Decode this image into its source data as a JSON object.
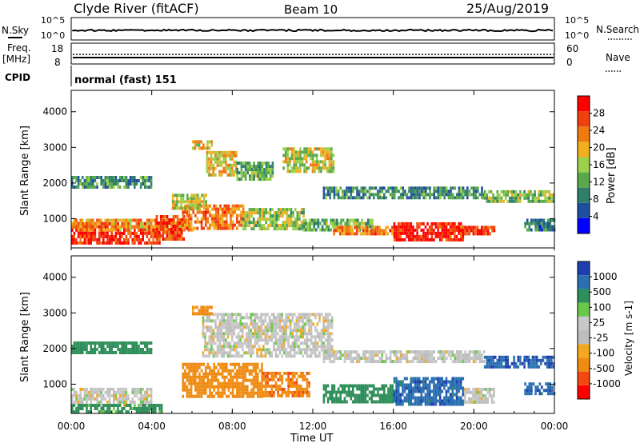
{
  "header": {
    "title": "Clyde River (fitACF)",
    "beam": "Beam 10",
    "date": "25/Aug/2019"
  },
  "top_panels": {
    "nsky_label": "N.Sky",
    "nsearch_label": "N.Search",
    "noise_ticks": [
      "10^5",
      "10^0"
    ],
    "freq_label_1": "Freq.",
    "freq_label_2": "[MHz]",
    "freq_ticks": [
      "18",
      "8"
    ],
    "nave_label": "Nave",
    "nave_ticks": [
      "60",
      "0"
    ],
    "cpid_label": "CPID",
    "cpid_value": "normal (fast) 151"
  },
  "colors": {
    "power_scale": [
      "#0000ff",
      "#1e4fa0",
      "#2f7f6a",
      "#5aa84a",
      "#9bd04a",
      "#f0b020",
      "#f07a10",
      "#f04010",
      "#ff0000"
    ],
    "velocity_scale": [
      "#ff0000",
      "#f04a10",
      "#f08a10",
      "#f4a820",
      "#bdbdbd",
      "#c8c8c8",
      "#6cc84a",
      "#2f8f5a",
      "#2a6fb0",
      "#1f3fb0"
    ]
  },
  "chart_data": [
    {
      "type": "heatmap",
      "panel": "power",
      "xlabel": "",
      "ylabel": "Slant Range [km]",
      "xlim": [
        "00:00",
        "24:00"
      ],
      "ylim": [
        180,
        4600
      ],
      "y_ticks": [
        1000,
        2000,
        3000,
        4000
      ],
      "colorbar": {
        "label": "Power [dB]",
        "ticks": [
          4,
          8,
          12,
          16,
          20,
          24,
          28
        ],
        "range": [
          0,
          30
        ]
      },
      "regions": [
        {
          "t0": 0.0,
          "t1": 4.4,
          "r0": 300,
          "r1": 900,
          "value": 27
        },
        {
          "t0": 0.0,
          "t1": 6.0,
          "r0": 650,
          "r1": 1000,
          "value": 20
        },
        {
          "t0": 4.2,
          "t1": 5.6,
          "r0": 400,
          "r1": 1100,
          "value": 25
        },
        {
          "t0": 5.5,
          "t1": 8.5,
          "r0": 700,
          "r1": 1400,
          "value": 22
        },
        {
          "t0": 8.5,
          "t1": 11.5,
          "r0": 750,
          "r1": 1300,
          "value": 14
        },
        {
          "t0": 11.5,
          "t1": 15.0,
          "r0": 650,
          "r1": 1000,
          "value": 12
        },
        {
          "t0": 13.0,
          "t1": 16.0,
          "r0": 600,
          "r1": 800,
          "value": 22
        },
        {
          "t0": 16.0,
          "t1": 19.5,
          "r0": 450,
          "r1": 900,
          "value": 27
        },
        {
          "t0": 19.0,
          "t1": 21.0,
          "r0": 550,
          "r1": 800,
          "value": 26
        },
        {
          "t0": 0.0,
          "t1": 4.0,
          "r0": 1900,
          "r1": 2200,
          "value": 10
        },
        {
          "t0": 5.0,
          "t1": 6.7,
          "r0": 1300,
          "r1": 1700,
          "value": 16
        },
        {
          "t0": 6.7,
          "t1": 8.2,
          "r0": 2200,
          "r1": 2900,
          "value": 18
        },
        {
          "t0": 8.2,
          "t1": 10.0,
          "r0": 2100,
          "r1": 2600,
          "value": 12
        },
        {
          "t0": 10.5,
          "t1": 13.0,
          "r0": 2300,
          "r1": 3000,
          "value": 16
        },
        {
          "t0": 6.0,
          "t1": 7.0,
          "r0": 3000,
          "r1": 3200,
          "value": 18
        },
        {
          "t0": 12.5,
          "t1": 20.5,
          "r0": 1600,
          "r1": 1900,
          "value": 9
        },
        {
          "t0": 20.5,
          "t1": 24.0,
          "r0": 1500,
          "r1": 1800,
          "value": 13
        },
        {
          "t0": 22.5,
          "t1": 24.0,
          "r0": 700,
          "r1": 1000,
          "value": 8
        }
      ]
    },
    {
      "type": "heatmap",
      "panel": "velocity",
      "xlabel": "Time UT",
      "ylabel": "Slant Range [km]",
      "xlim": [
        "00:00",
        "24:00"
      ],
      "ylim": [
        180,
        4600
      ],
      "x_ticks": [
        "00:00",
        "04:00",
        "08:00",
        "12:00",
        "16:00",
        "20:00",
        "00:00"
      ],
      "y_ticks": [
        1000,
        2000,
        3000,
        4000
      ],
      "colorbar": {
        "label": "Velocity [m s-1]",
        "ticks": [
          "-1000",
          "-500",
          "-100",
          "-25",
          "25",
          "100",
          "500",
          "1000"
        ]
      },
      "regions": [
        {
          "t0": 0.0,
          "t1": 4.0,
          "r0": 400,
          "r1": 900,
          "value": 0
        },
        {
          "t0": 0.0,
          "t1": 4.5,
          "r0": 200,
          "r1": 450,
          "value": 150
        },
        {
          "t0": 5.5,
          "t1": 9.5,
          "r0": 700,
          "r1": 1600,
          "value": -200
        },
        {
          "t0": 9.5,
          "t1": 11.8,
          "r0": 700,
          "r1": 1350,
          "value": -400
        },
        {
          "t0": 12.5,
          "t1": 16.0,
          "r0": 550,
          "r1": 1000,
          "value": 300
        },
        {
          "t0": 16.0,
          "t1": 19.5,
          "r0": 450,
          "r1": 1200,
          "value": 800
        },
        {
          "t0": 19.5,
          "t1": 21.0,
          "r0": 500,
          "r1": 900,
          "value": 0
        },
        {
          "t0": 6.5,
          "t1": 13.0,
          "r0": 1800,
          "r1": 3000,
          "value": 0
        },
        {
          "t0": 12.5,
          "t1": 20.5,
          "r0": 1600,
          "r1": 1950,
          "value": 0
        },
        {
          "t0": 20.5,
          "t1": 24.0,
          "r0": 1500,
          "r1": 1800,
          "value": 900
        },
        {
          "t0": 22.5,
          "t1": 24.0,
          "r0": 750,
          "r1": 1050,
          "value": 800
        },
        {
          "t0": 0.0,
          "t1": 4.0,
          "r0": 1900,
          "r1": 2200,
          "value": 200
        },
        {
          "t0": 6.0,
          "t1": 7.0,
          "r0": 3000,
          "r1": 3200,
          "value": -150
        }
      ]
    }
  ]
}
